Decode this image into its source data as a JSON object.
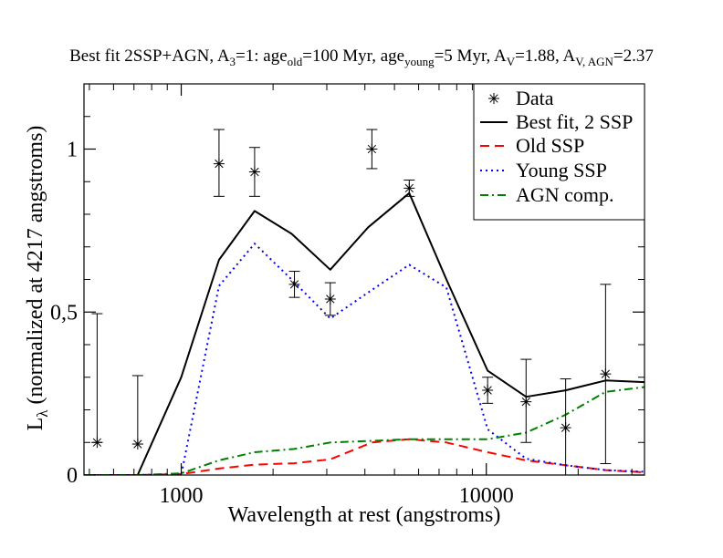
{
  "chart_data": {
    "type": "line",
    "title": {
      "prefix": "Best fit 2SSP+AGN, A",
      "a_sub": "3",
      "age_part": "=1: age",
      "age_old_sub": "old",
      "old_val": "=100 Myr, age",
      "age_young_sub": "young",
      "young_val": "=5 Myr, A",
      "av_sub": "V",
      "av_val": "=1.88, A",
      "av_agn_sub": "V, AGN",
      "av_agn_val": "=2.37"
    },
    "xlabel": "Wavelength at rest (angstroms)",
    "ylabel_main": "L",
    "ylabel_sub": "λ",
    "ylabel_rest": " (normalized at 4217 angstroms)",
    "xscale": "log",
    "xlim": [
      480,
      33000
    ],
    "ylim": [
      0,
      1.2
    ],
    "xticks": [
      {
        "value": 1000,
        "label": "1000"
      },
      {
        "value": 10000,
        "label": "10000"
      }
    ],
    "yticks": [
      {
        "value": 0,
        "label": "0"
      },
      {
        "value": 0.5,
        "label": "0,5"
      },
      {
        "value": 1,
        "label": "1"
      }
    ],
    "grid": false,
    "legend_position": "top-right",
    "data_points": [
      {
        "x": 530,
        "y": 0.1,
        "err_lo": 0.1,
        "err_hi": 0.495
      },
      {
        "x": 720,
        "y": 0.095,
        "err_lo": 0.095,
        "err_hi": 0.305
      },
      {
        "x": 1330,
        "y": 0.955,
        "err_lo": 0.855,
        "err_hi": 1.06
      },
      {
        "x": 1740,
        "y": 0.93,
        "err_lo": 0.855,
        "err_hi": 1.005
      },
      {
        "x": 2350,
        "y": 0.585,
        "err_lo": 0.545,
        "err_hi": 0.625
      },
      {
        "x": 3080,
        "y": 0.54,
        "err_lo": 0.49,
        "err_hi": 0.59
      },
      {
        "x": 4217,
        "y": 1.0,
        "err_lo": 0.94,
        "err_hi": 1.06
      },
      {
        "x": 5590,
        "y": 0.88,
        "err_lo": 0.855,
        "err_hi": 0.905
      },
      {
        "x": 10100,
        "y": 0.26,
        "err_lo": 0.22,
        "err_hi": 0.3
      },
      {
        "x": 13500,
        "y": 0.225,
        "err_lo": 0.1,
        "err_hi": 0.355
      },
      {
        "x": 18200,
        "y": 0.145,
        "err_lo": 0.0,
        "err_hi": 0.295
      },
      {
        "x": 24600,
        "y": 0.31,
        "err_lo": 0.035,
        "err_hi": 0.585
      }
    ],
    "series": [
      {
        "name": "Best fit, 2 SSP",
        "color": "#000000",
        "dash": "solid",
        "x": [
          480,
          720,
          1000,
          1330,
          1740,
          2300,
          3080,
          4100,
          5590,
          7400,
          10100,
          13500,
          18200,
          24600,
          33000
        ],
        "y": [
          0.0,
          0.0,
          0.3,
          0.66,
          0.81,
          0.74,
          0.63,
          0.76,
          0.865,
          0.6,
          0.32,
          0.24,
          0.26,
          0.29,
          0.285
        ]
      },
      {
        "name": "Old SSP",
        "color": "#ff0000",
        "dash": "dashed",
        "x": [
          480,
          720,
          1000,
          1330,
          1740,
          2350,
          3080,
          4217,
          5590,
          7400,
          10100,
          13500,
          18200,
          24600,
          33000
        ],
        "y": [
          0.0,
          0.0,
          0.003,
          0.02,
          0.032,
          0.036,
          0.048,
          0.1,
          0.11,
          0.1,
          0.07,
          0.045,
          0.03,
          0.015,
          0.008
        ]
      },
      {
        "name": "Young SSP",
        "color": "#0000ff",
        "dash": "dotted",
        "x": [
          480,
          720,
          1000,
          1330,
          1740,
          2300,
          3080,
          4100,
          5590,
          7400,
          10100,
          13500,
          18200,
          24600,
          33000
        ],
        "y": [
          0.0,
          0.0,
          0.0,
          0.58,
          0.71,
          0.6,
          0.48,
          0.56,
          0.645,
          0.575,
          0.14,
          0.05,
          0.03,
          0.015,
          0.01
        ]
      },
      {
        "name": "AGN comp.",
        "color": "#008000",
        "dash": "dashdot",
        "x": [
          480,
          720,
          1000,
          1330,
          1740,
          2350,
          3080,
          4217,
          5590,
          7400,
          10100,
          13500,
          18200,
          24600,
          33000
        ],
        "y": [
          0.0,
          0.0,
          0.005,
          0.045,
          0.07,
          0.08,
          0.1,
          0.105,
          0.11,
          0.11,
          0.11,
          0.13,
          0.185,
          0.255,
          0.27
        ]
      }
    ],
    "legend": [
      "Data",
      "Best fit, 2 SSP",
      "Old SSP",
      "Young SSP",
      "AGN comp."
    ]
  }
}
